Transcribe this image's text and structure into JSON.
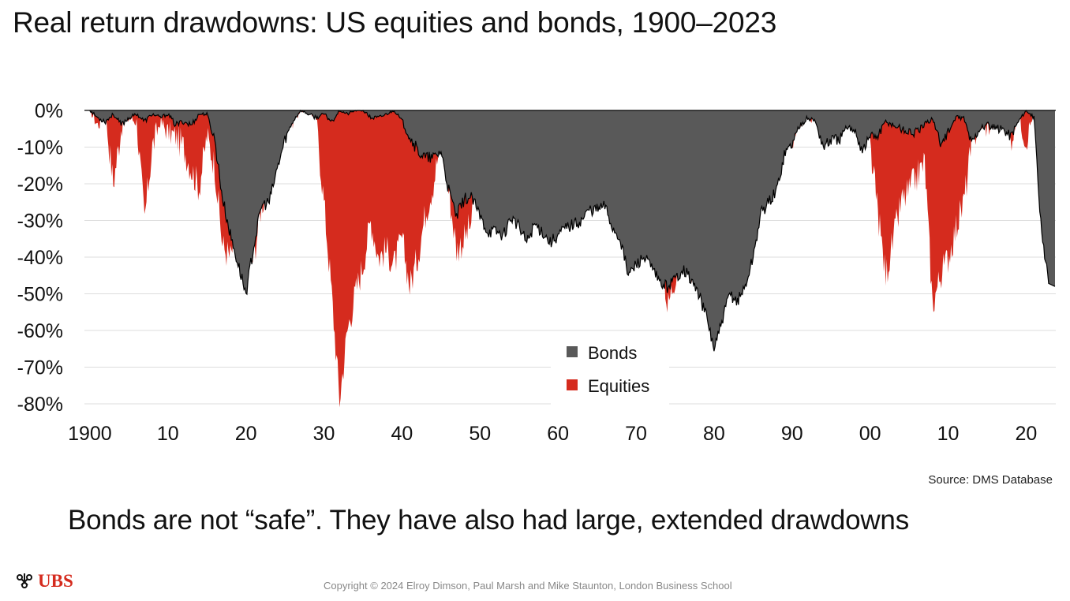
{
  "title": "Real return drawdowns: US equities and bonds, 1900–2023",
  "source": "Source: DMS Database",
  "subtitle": "Bonds are not “safe”. They have also had large, extended drawdowns",
  "footer": {
    "logo_text": "UBS",
    "logo_icon": "ubs-keys-icon",
    "copyright": "Copyright © 2024 Elroy Dimson, Paul Marsh and Mike Staunton, London Business School"
  },
  "colors": {
    "bonds": "#595959",
    "equities": "#d52b1e",
    "line": "#000000",
    "grid": "#dddddd"
  },
  "chart_data": {
    "type": "area",
    "title": "Real return drawdowns: US equities and bonds, 1900–2023",
    "xlabel": "",
    "ylabel": "",
    "x_ticks": [
      1900,
      1910,
      1920,
      1930,
      1940,
      1950,
      1960,
      1970,
      1980,
      1990,
      2000,
      2010,
      2020
    ],
    "x_tick_labels": [
      "1900",
      "10",
      "20",
      "30",
      "40",
      "50",
      "60",
      "70",
      "80",
      "90",
      "00",
      "10",
      "20"
    ],
    "y_ticks": [
      0,
      -10,
      -20,
      -30,
      -40,
      -50,
      -60,
      -70,
      -80
    ],
    "y_tick_labels": [
      "0%",
      "-10%",
      "-20%",
      "-30%",
      "-40%",
      "-50%",
      "-60%",
      "-70%",
      "-80%"
    ],
    "xlim": [
      1899.3,
      2023.8
    ],
    "ylim": [
      -80,
      0
    ],
    "legend_position": "center-bottom",
    "series": [
      {
        "name": "Bonds",
        "x": [
          1900,
          1901,
          1902,
          1903,
          1904,
          1905,
          1906,
          1907,
          1908,
          1909,
          1910,
          1911,
          1912,
          1913,
          1914,
          1915,
          1916,
          1917,
          1918,
          1919,
          1920,
          1921,
          1922,
          1923,
          1924,
          1925,
          1926,
          1927,
          1928,
          1929,
          1930,
          1931,
          1932,
          1933,
          1934,
          1935,
          1936,
          1937,
          1938,
          1939,
          1940,
          1941,
          1942,
          1943,
          1944,
          1945,
          1946,
          1947,
          1948,
          1949,
          1950,
          1951,
          1952,
          1953,
          1954,
          1955,
          1956,
          1957,
          1958,
          1959,
          1960,
          1961,
          1962,
          1963,
          1964,
          1965,
          1966,
          1967,
          1968,
          1969,
          1970,
          1971,
          1972,
          1973,
          1974,
          1975,
          1976,
          1977,
          1978,
          1979,
          1980,
          1981,
          1982,
          1983,
          1984,
          1985,
          1986,
          1987,
          1988,
          1989,
          1990,
          1991,
          1992,
          1993,
          1994,
          1995,
          1996,
          1997,
          1998,
          1999,
          2000,
          2001,
          2002,
          2003,
          2004,
          2005,
          2006,
          2007,
          2008,
          2009,
          2010,
          2011,
          2012,
          2013,
          2014,
          2015,
          2016,
          2017,
          2018,
          2019,
          2020,
          2021,
          2022,
          2023
        ],
        "values": [
          0,
          -2,
          -3,
          -1,
          -4,
          -2,
          -1,
          -3,
          -1,
          -2,
          -1,
          -4,
          -3,
          -4,
          -1,
          -1,
          -8,
          -24,
          -34,
          -42,
          -50,
          -37,
          -26,
          -25,
          -16,
          -8,
          -3,
          0,
          -1,
          -2,
          -1,
          -3,
          0,
          -1,
          0,
          0,
          -2,
          -2,
          -1,
          0,
          -3,
          -7,
          -11,
          -13,
          -13,
          -11,
          -22,
          -29,
          -24,
          -24,
          -29,
          -33,
          -33,
          -34,
          -29,
          -32,
          -36,
          -31,
          -33,
          -36,
          -34,
          -32,
          -31,
          -30,
          -27,
          -27,
          -26,
          -32,
          -35,
          -45,
          -42,
          -40,
          -43,
          -47,
          -48,
          -46,
          -43,
          -46,
          -50,
          -56,
          -65,
          -58,
          -50,
          -52,
          -48,
          -40,
          -28,
          -25,
          -22,
          -12,
          -9,
          -4,
          -2,
          -3,
          -10,
          -8,
          -8,
          -5,
          -5,
          -11,
          -7,
          -7,
          -3,
          -4,
          -5,
          -6,
          -6,
          -4,
          -2,
          -9,
          -6,
          -2,
          -2,
          -9,
          -5,
          -4,
          -5,
          -5,
          -7,
          -3,
          0,
          -2,
          -35,
          -48
        ]
      },
      {
        "name": "Equities",
        "x": [
          1900,
          1901,
          1902,
          1903,
          1904,
          1905,
          1906,
          1907,
          1908,
          1909,
          1910,
          1911,
          1912,
          1913,
          1914,
          1915,
          1916,
          1917,
          1918,
          1919,
          1920,
          1921,
          1922,
          1923,
          1924,
          1925,
          1926,
          1927,
          1928,
          1929,
          1930,
          1931,
          1932,
          1933,
          1934,
          1935,
          1936,
          1937,
          1938,
          1939,
          1940,
          1941,
          1942,
          1943,
          1944,
          1945,
          1946,
          1947,
          1948,
          1949,
          1950,
          1951,
          1952,
          1953,
          1954,
          1955,
          1956,
          1957,
          1958,
          1959,
          1960,
          1961,
          1962,
          1963,
          1964,
          1965,
          1966,
          1967,
          1968,
          1969,
          1970,
          1971,
          1972,
          1973,
          1974,
          1975,
          1976,
          1977,
          1978,
          1979,
          1980,
          1981,
          1982,
          1983,
          1984,
          1985,
          1986,
          1987,
          1988,
          1989,
          1990,
          1991,
          1992,
          1993,
          1994,
          1995,
          1996,
          1997,
          1998,
          1999,
          2000,
          2001,
          2002,
          2003,
          2004,
          2005,
          2006,
          2007,
          2008,
          2009,
          2010,
          2011,
          2012,
          2013,
          2014,
          2015,
          2016,
          2017,
          2018,
          2019,
          2020,
          2021,
          2022,
          2023
        ],
        "values": [
          0,
          -4,
          -1,
          -20,
          -5,
          -2,
          -3,
          -30,
          -10,
          -3,
          -6,
          -7,
          -10,
          -16,
          -21,
          -7,
          -15,
          -37,
          -40,
          -32,
          -44,
          -40,
          -25,
          -22,
          -12,
          -5,
          -3,
          0,
          0,
          -2,
          -25,
          -50,
          -79,
          -60,
          -50,
          -42,
          -30,
          -40,
          -38,
          -42,
          -35,
          -48,
          -40,
          -28,
          -20,
          -8,
          -22,
          -38,
          -35,
          -30,
          0,
          0,
          0,
          0,
          0,
          0,
          0,
          0,
          0,
          0,
          0,
          0,
          0,
          0,
          0,
          0,
          -3,
          -5,
          -2,
          -12,
          -14,
          -8,
          -6,
          -28,
          -54,
          -45,
          -38,
          -43,
          -42,
          -38,
          -40,
          -42,
          -40,
          -20,
          -15,
          -5,
          -3,
          -5,
          -8,
          -3,
          -8,
          -3,
          -2,
          -2,
          -4,
          0,
          0,
          0,
          0,
          0,
          -10,
          -28,
          -45,
          -35,
          -25,
          -22,
          -18,
          -14,
          -53,
          -45,
          -40,
          -32,
          -25,
          -10,
          -3,
          -5,
          -3,
          0,
          -8,
          -2,
          -8,
          0,
          -22,
          -10
        ]
      }
    ]
  }
}
